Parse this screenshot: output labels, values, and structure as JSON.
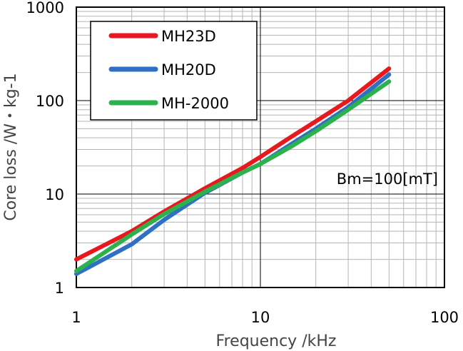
{
  "chart_data": {
    "type": "line",
    "title": "",
    "xlabel": "Frequency /kHz",
    "ylabel": "Core loss /W・kg-1",
    "xscale": "log",
    "yscale": "log",
    "xlim": [
      1,
      100
    ],
    "ylim": [
      1,
      1000
    ],
    "x_ticks": [
      "1",
      "10",
      "100"
    ],
    "y_ticks": [
      "1",
      "10",
      "100",
      "1000"
    ],
    "grid": true,
    "legend_position": "top-left",
    "annotation": "Bm=100[mT]",
    "series": [
      {
        "name": "MH23D",
        "color": "#e8191e",
        "x": [
          1,
          2,
          3,
          5,
          8,
          10,
          15,
          20,
          30,
          50
        ],
        "y": [
          2.0,
          4.0,
          6.5,
          11.5,
          19,
          25,
          42,
          60,
          100,
          220
        ]
      },
      {
        "name": "MH20D",
        "color": "#2f6fc4",
        "x": [
          1,
          2,
          3,
          5,
          8,
          10,
          15,
          20,
          30,
          50
        ],
        "y": [
          1.4,
          2.9,
          5.3,
          10.3,
          17,
          21,
          35,
          50,
          85,
          190
        ]
      },
      {
        "name": "MH-2000",
        "color": "#2bb24c",
        "x": [
          1,
          2,
          3,
          5,
          8,
          10,
          15,
          20,
          30,
          50
        ],
        "y": [
          1.5,
          3.7,
          6.1,
          10.6,
          17,
          21,
          33,
          47,
          80,
          160
        ]
      }
    ]
  }
}
